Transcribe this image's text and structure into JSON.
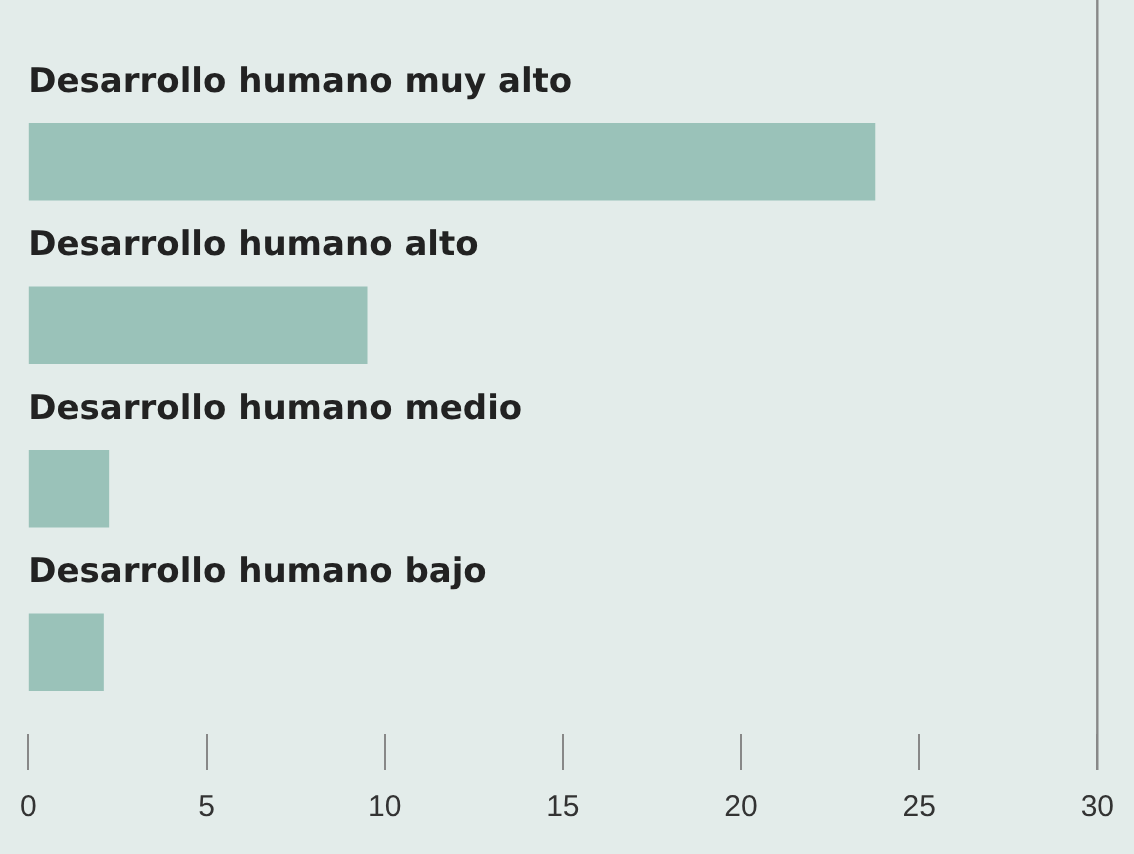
{
  "chart_data": {
    "type": "bar",
    "orientation": "horizontal",
    "categories": [
      "Desarrollo humano muy alto",
      "Desarrollo humano alto",
      "Desarrollo humano medio",
      "Desarrollo humano bajo"
    ],
    "values": [
      23.75,
      9.5,
      2.25,
      2.1
    ],
    "color": "#9ac2b9",
    "xlim": [
      0,
      30
    ],
    "xticks": [
      0,
      5,
      10,
      15,
      20,
      25,
      30
    ],
    "grid": false,
    "legend": false
  }
}
